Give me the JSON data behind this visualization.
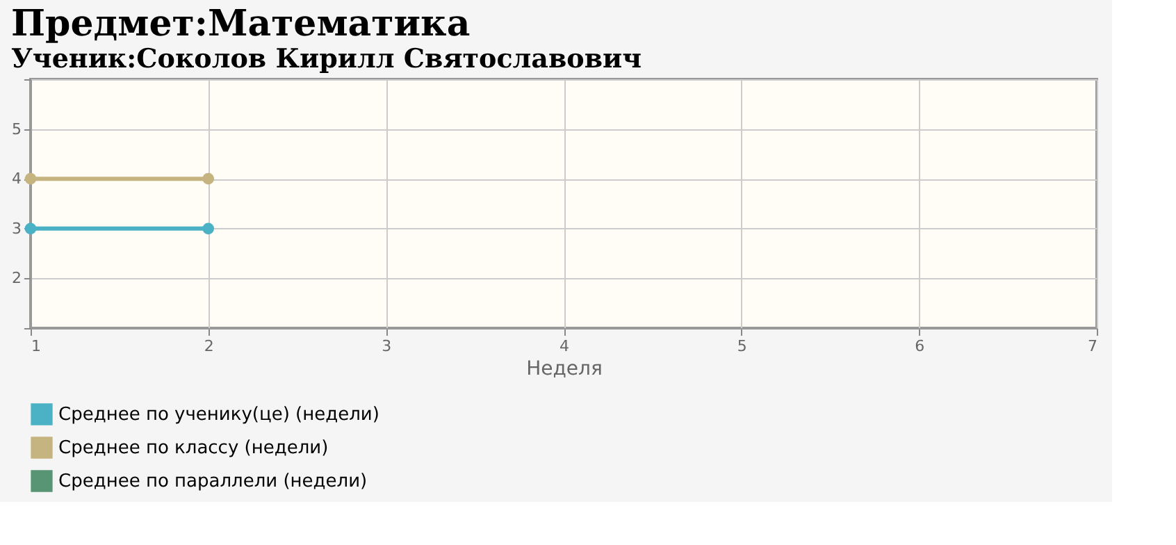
{
  "chart_data": {
    "type": "line",
    "title": "Предмет:Математика",
    "subtitle": "Ученик:Соколов Кирилл Святославович",
    "xlabel": "Неделя",
    "x": [
      1,
      2
    ],
    "series": [
      {
        "name": "Среднее по ученику(це) (недели)",
        "color": "#4bb2c5",
        "values": [
          3,
          3
        ]
      },
      {
        "name": "Среднее по классу (недели)",
        "color": "#c5b47f",
        "values": [
          4,
          4
        ]
      },
      {
        "name": "Среднее по параллели (недели)",
        "color": "#579575",
        "values": [
          null,
          null
        ]
      }
    ],
    "xlim": [
      1,
      7
    ],
    "xticks": [
      1,
      2,
      3,
      4,
      5,
      6,
      7
    ],
    "ylim": [
      1,
      6
    ],
    "yticks": [
      {
        "value": 1,
        "label": null
      },
      2,
      3,
      4,
      5,
      {
        "value": 6,
        "label": null
      }
    ],
    "grid": true,
    "legend": "bottom",
    "marker": "circle",
    "line_style": "solid"
  }
}
